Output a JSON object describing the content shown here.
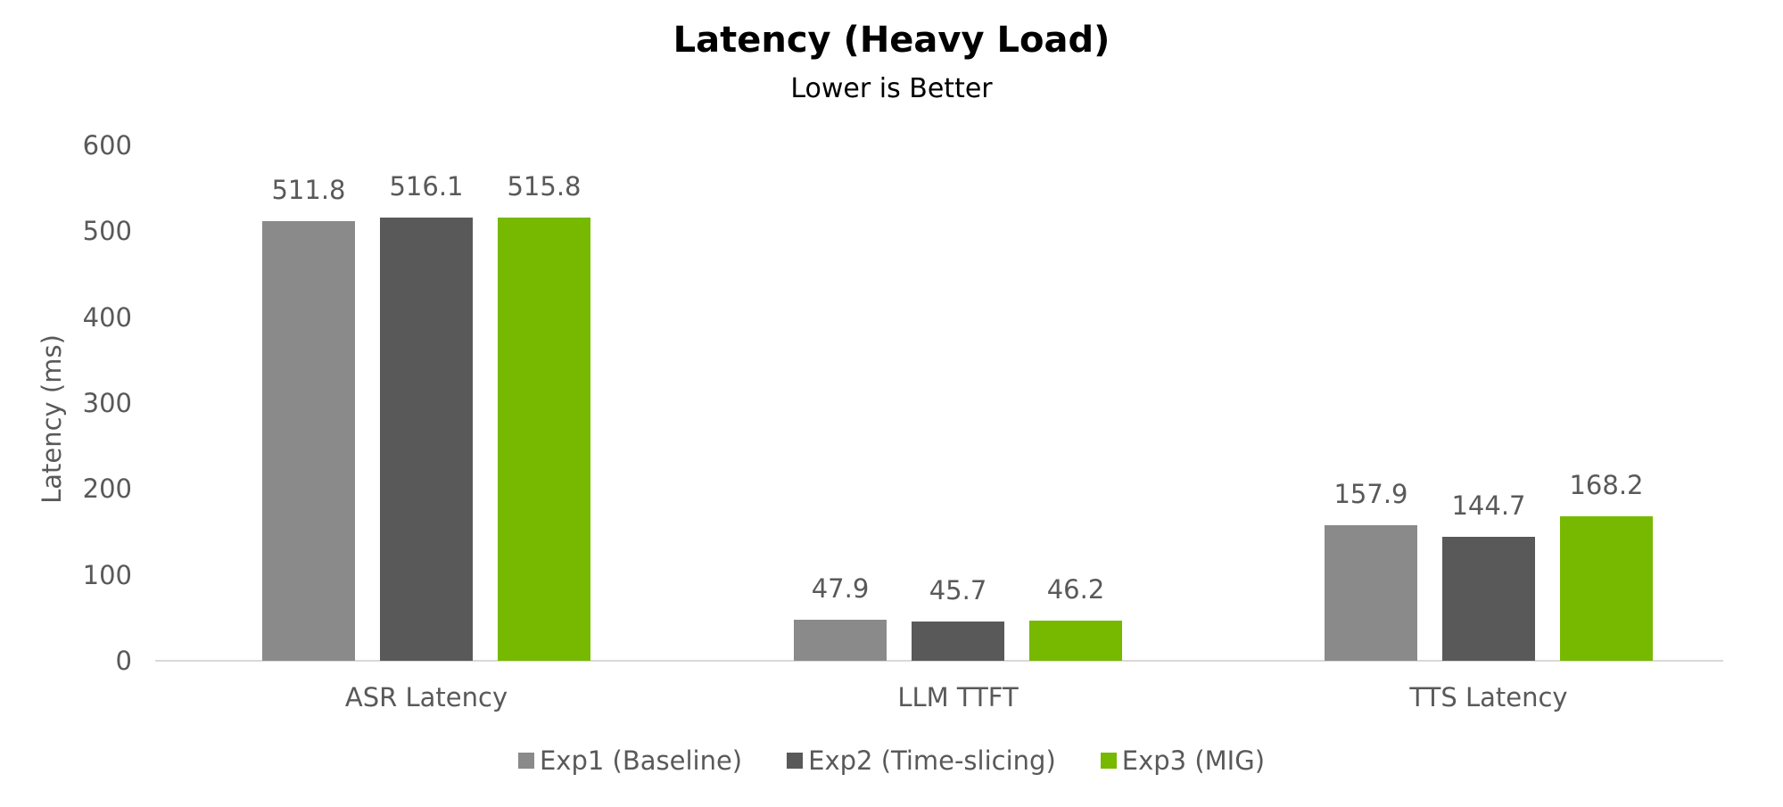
{
  "chart_data": {
    "type": "bar",
    "title": "Latency (Heavy Load)",
    "subtitle": "Lower is Better",
    "xlabel": "",
    "ylabel": "Latency (ms)",
    "ylim": [
      0,
      600
    ],
    "yticks": [
      "0",
      "100",
      "200",
      "300",
      "400",
      "500",
      "600"
    ],
    "grid": false,
    "legend_position": "bottom",
    "categories": [
      "ASR Latency",
      "LLM TTFT",
      "TTS Latency"
    ],
    "series": [
      {
        "name": "Exp1 (Baseline)",
        "color": "#8a8a8a",
        "values": [
          511.8,
          47.9,
          157.9
        ],
        "labels": [
          "511.8",
          "47.9",
          "157.9"
        ]
      },
      {
        "name": "Exp2 (Time-slicing)",
        "color": "#595959",
        "values": [
          516.1,
          45.7,
          144.7
        ],
        "labels": [
          "516.1",
          "45.7",
          "144.7"
        ]
      },
      {
        "name": "Exp3 (MIG)",
        "color": "#76b900",
        "values": [
          515.8,
          46.2,
          168.2
        ],
        "labels": [
          "515.8",
          "46.2",
          "168.2"
        ]
      }
    ]
  }
}
